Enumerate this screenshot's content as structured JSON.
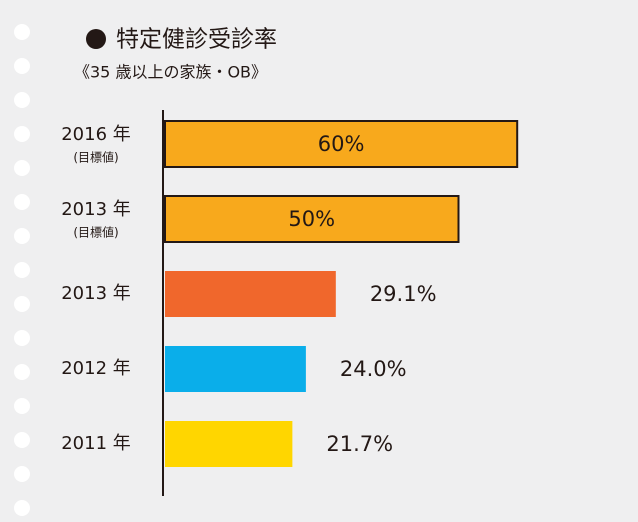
{
  "chart_data": {
    "type": "barh",
    "title": "特定健診受診率",
    "subtitle": "《35 歳以上の家族・OB》",
    "categories": [
      "2016 年",
      "2013 年",
      "2013 年",
      "2012 年",
      "2011 年"
    ],
    "sublabels": [
      "(目標値)",
      "(目標値)",
      null,
      null,
      null
    ],
    "values": [
      60,
      50,
      29.1,
      24.0,
      21.7
    ],
    "value_labels": [
      "60%",
      "50%",
      "29.1%",
      "24.0%",
      "21.7%"
    ],
    "colors": [
      "#f8a91c",
      "#f8a91c",
      "#f0672c",
      "#0aaeea",
      "#ffd600"
    ],
    "edgecolors": [
      "#231815",
      "#231815",
      null,
      null,
      null
    ]
  }
}
